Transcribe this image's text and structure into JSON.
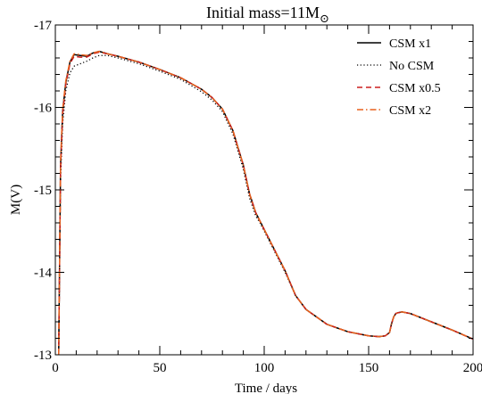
{
  "chart_data": {
    "type": "line",
    "title_text": "Initial mass=11M",
    "title_symbol": "⊙",
    "xlabel": "Time / days",
    "ylabel": "M(V)",
    "xlim": [
      0,
      200
    ],
    "ylim": [
      -13,
      -17
    ],
    "y_inverted": true,
    "x_ticks": [
      0,
      50,
      100,
      150,
      200
    ],
    "y_ticks": [
      -13,
      -14,
      -15,
      -16,
      -17
    ],
    "x_minor_step": 10,
    "y_minor_step": 0.2,
    "grid": false,
    "legend_position": "top-right",
    "series": [
      {
        "name": "CSM x1",
        "color": "#000000",
        "dash": "solid",
        "x": [
          1.6,
          2.5,
          3.5,
          5,
          7,
          9,
          12,
          15,
          18,
          21,
          25,
          30,
          40,
          50,
          60,
          70,
          75,
          80,
          85,
          90,
          93,
          96,
          98,
          100,
          105,
          110,
          115,
          120,
          130,
          140,
          150,
          155,
          158,
          160,
          161,
          162,
          163,
          164,
          166,
          170,
          180,
          190,
          200
        ],
        "y": [
          -13,
          -15.3,
          -15.95,
          -16.3,
          -16.55,
          -16.64,
          -16.63,
          -16.62,
          -16.66,
          -16.68,
          -16.65,
          -16.62,
          -16.55,
          -16.46,
          -16.36,
          -16.22,
          -16.12,
          -15.98,
          -15.72,
          -15.3,
          -14.95,
          -14.72,
          -14.62,
          -14.52,
          -14.27,
          -14.02,
          -13.72,
          -13.55,
          -13.37,
          -13.28,
          -13.23,
          -13.22,
          -13.23,
          -13.27,
          -13.38,
          -13.46,
          -13.5,
          -13.51,
          -13.52,
          -13.5,
          -13.4,
          -13.3,
          -13.19
        ]
      },
      {
        "name": "No CSM",
        "color": "#000000",
        "dash": "dotted",
        "x": [
          1.6,
          2.5,
          3.5,
          5,
          7,
          9,
          12,
          15,
          18,
          21,
          25,
          30,
          40,
          50,
          60,
          70,
          75,
          80,
          85,
          90,
          93,
          96,
          98,
          100,
          105,
          110,
          115,
          120,
          130,
          140,
          150,
          155,
          158,
          160,
          161,
          162,
          163,
          164,
          166,
          170,
          180,
          190,
          200
        ],
        "y": [
          -13,
          -15.1,
          -15.8,
          -16.2,
          -16.42,
          -16.5,
          -16.53,
          -16.56,
          -16.6,
          -16.63,
          -16.63,
          -16.6,
          -16.53,
          -16.44,
          -16.34,
          -16.19,
          -16.09,
          -15.95,
          -15.68,
          -15.25,
          -14.9,
          -14.68,
          -14.6,
          -14.5,
          -14.25,
          -14,
          -13.72,
          -13.55,
          -13.37,
          -13.28,
          -13.23,
          -13.22,
          -13.23,
          -13.27,
          -13.38,
          -13.46,
          -13.5,
          -13.51,
          -13.52,
          -13.5,
          -13.4,
          -13.3,
          -13.19
        ]
      },
      {
        "name": "CSM x0.5",
        "color": "#cc1f1f",
        "dash": "dashed",
        "x": [
          1.6,
          2.5,
          3.5,
          5,
          7,
          9,
          12,
          15,
          18,
          21,
          25,
          30,
          40,
          50,
          60,
          70,
          75,
          80,
          85,
          90,
          93,
          96,
          98,
          100,
          105,
          110,
          115,
          120,
          130,
          140,
          150,
          155,
          158,
          160,
          161,
          162,
          163,
          164,
          166,
          170,
          180,
          190,
          200
        ],
        "y": [
          -13,
          -15.25,
          -15.92,
          -16.28,
          -16.53,
          -16.62,
          -16.61,
          -16.61,
          -16.65,
          -16.67,
          -16.65,
          -16.62,
          -16.55,
          -16.46,
          -16.36,
          -16.22,
          -16.12,
          -15.98,
          -15.72,
          -15.3,
          -14.95,
          -14.72,
          -14.62,
          -14.52,
          -14.27,
          -14.02,
          -13.72,
          -13.55,
          -13.37,
          -13.28,
          -13.23,
          -13.22,
          -13.23,
          -13.27,
          -13.38,
          -13.46,
          -13.5,
          -13.51,
          -13.52,
          -13.5,
          -13.4,
          -13.3,
          -13.19
        ]
      },
      {
        "name": "CSM x2",
        "color": "#e8601c",
        "dash": "dashdot",
        "x": [
          1.6,
          2.5,
          3.5,
          5,
          7,
          9,
          12,
          15,
          18,
          21,
          25,
          30,
          40,
          50,
          60,
          70,
          75,
          80,
          85,
          90,
          93,
          96,
          98,
          100,
          105,
          110,
          115,
          120,
          130,
          140,
          150,
          155,
          158,
          160,
          161,
          162,
          163,
          164,
          166,
          170,
          180,
          190,
          200
        ],
        "y": [
          -13,
          -15.35,
          -15.98,
          -16.32,
          -16.56,
          -16.65,
          -16.64,
          -16.63,
          -16.66,
          -16.68,
          -16.65,
          -16.62,
          -16.55,
          -16.46,
          -16.36,
          -16.22,
          -16.12,
          -15.98,
          -15.72,
          -15.3,
          -14.95,
          -14.72,
          -14.62,
          -14.52,
          -14.27,
          -14.02,
          -13.72,
          -13.55,
          -13.37,
          -13.28,
          -13.23,
          -13.22,
          -13.23,
          -13.27,
          -13.38,
          -13.46,
          -13.5,
          -13.51,
          -13.52,
          -13.5,
          -13.4,
          -13.3,
          -13.19
        ]
      }
    ]
  }
}
